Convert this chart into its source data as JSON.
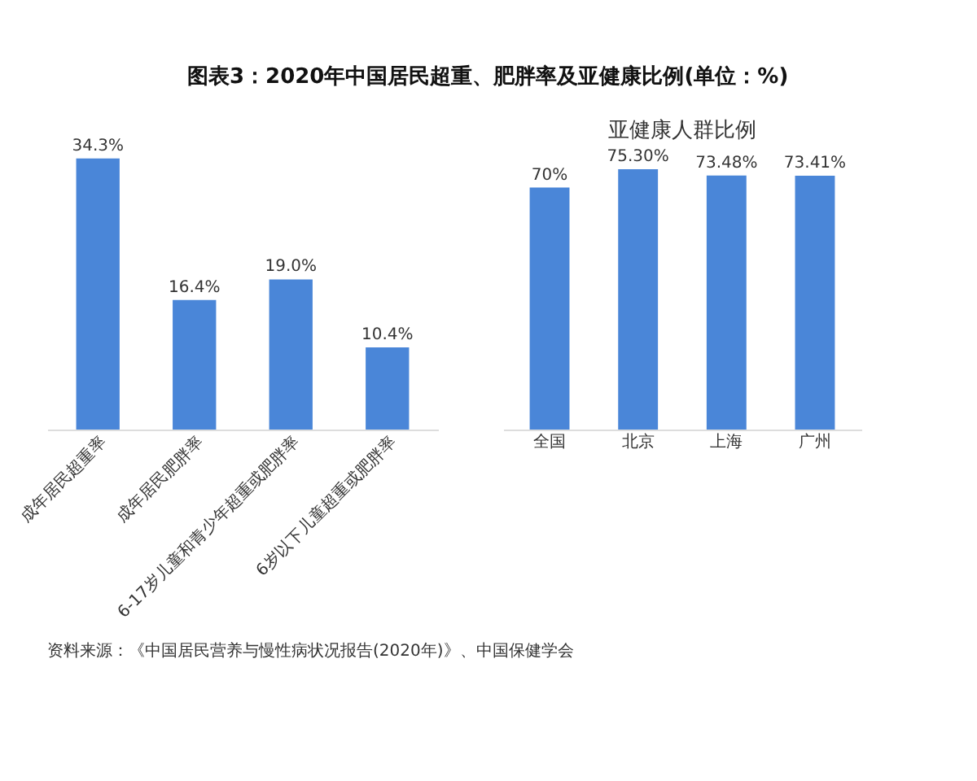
{
  "chart_data": [
    {
      "type": "bar",
      "title": "图表3：2020年中国居民超重、肥胖率及亚健康比例(单位：%)",
      "categories": [
        "成年居民超重率",
        "成年居民肥胖率",
        "6-17岁儿童和青少年超重或肥胖率",
        "6岁以下儿童超重或肥胖率"
      ],
      "values": [
        34.3,
        16.4,
        19.0,
        10.4
      ],
      "value_labels": [
        "34.3%",
        "16.4%",
        "19.0%",
        "10.4%"
      ],
      "color": "#4a86d8",
      "tick_labels": "x",
      "annotations": [
        "资料来源：《中国居民营养与慢性病状况报告(2020年)》、中国保健学会"
      ]
    },
    {
      "type": "bar",
      "title": "亚健康人群比例",
      "categories": [
        "全国",
        "北京",
        "上海",
        "广州"
      ],
      "values": [
        70,
        75.3,
        73.48,
        73.41
      ],
      "value_labels": [
        "70%",
        "75.30%",
        "73.48%",
        "73.41%"
      ],
      "color": "#4a86d8",
      "tick_labels": "x"
    }
  ]
}
